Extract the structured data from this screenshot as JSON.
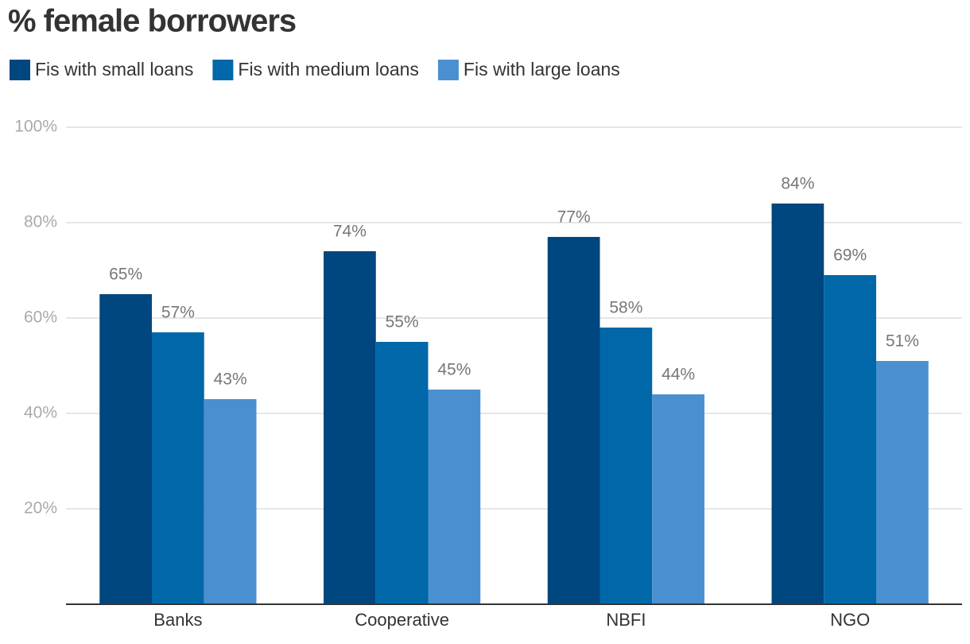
{
  "chart_data": {
    "type": "bar",
    "title": "% female borrowers",
    "categories": [
      "Banks",
      "Cooperative",
      "NBFI",
      "NGO"
    ],
    "series": [
      {
        "name": "Fis with small loans",
        "color": "#00467f",
        "values": [
          65,
          74,
          77,
          84
        ],
        "value_labels": [
          "65%",
          "74%",
          "77%",
          "84%"
        ]
      },
      {
        "name": "Fis with medium loans",
        "color": "#0068a8",
        "values": [
          57,
          55,
          58,
          69
        ],
        "value_labels": [
          "57%",
          "55%",
          "58%",
          "69%"
        ]
      },
      {
        "name": "Fis with large loans",
        "color": "#4a90d0",
        "values": [
          43,
          45,
          44,
          51
        ],
        "value_labels": [
          "43%",
          "45%",
          "44%",
          "51%"
        ]
      }
    ],
    "ylim": [
      0,
      100
    ],
    "yticks": [
      {
        "value": 20,
        "label": "20%"
      },
      {
        "value": 40,
        "label": "40%"
      },
      {
        "value": 60,
        "label": "60%"
      },
      {
        "value": 80,
        "label": "80%"
      },
      {
        "value": 100,
        "label": "100%"
      }
    ],
    "grid": true,
    "legend": "top-left"
  }
}
